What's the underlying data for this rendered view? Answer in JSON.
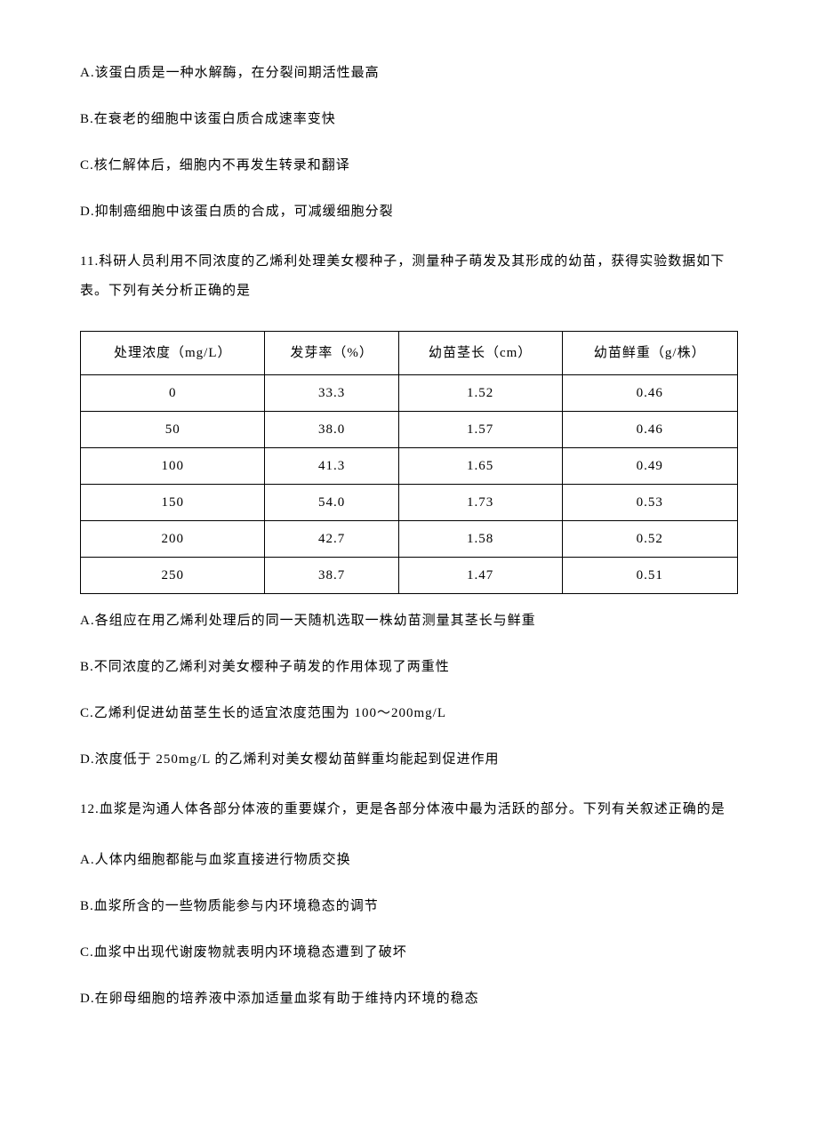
{
  "q10": {
    "optionA": "A.该蛋白质是一种水解酶，在分裂间期活性最高",
    "optionB": "B.在衰老的细胞中该蛋白质合成速率变快",
    "optionC": "C.核仁解体后，细胞内不再发生转录和翻译",
    "optionD": "D.抑制癌细胞中该蛋白质的合成，可减缓细胞分裂"
  },
  "q11": {
    "stem": "11.科研人员利用不同浓度的乙烯利处理美女樱种子，测量种子萌发及其形成的幼苗，获得实验数据如下表。下列有关分析正确的是",
    "table": {
      "columns": [
        "处理浓度（mg/L）",
        "发芽率（%）",
        "幼苗茎长（cm）",
        "幼苗鲜重（g/株）"
      ],
      "rows": [
        [
          "0",
          "33.3",
          "1.52",
          "0.46"
        ],
        [
          "50",
          "38.0",
          "1.57",
          "0.46"
        ],
        [
          "100",
          "41.3",
          "1.65",
          "0.49"
        ],
        [
          "150",
          "54.0",
          "1.73",
          "0.53"
        ],
        [
          "200",
          "42.7",
          "1.58",
          "0.52"
        ],
        [
          "250",
          "38.7",
          "1.47",
          "0.51"
        ]
      ],
      "border_color": "#000000",
      "background_color": "#ffffff"
    },
    "optionA": "A.各组应在用乙烯利处理后的同一天随机选取一株幼苗测量其茎长与鲜重",
    "optionB": "B.不同浓度的乙烯利对美女樱种子萌发的作用体现了两重性",
    "optionC": "C.乙烯利促进幼苗茎生长的适宜浓度范围为 100～200mg/L",
    "optionD": "D.浓度低于 250mg/L 的乙烯利对美女樱幼苗鲜重均能起到促进作用"
  },
  "q12": {
    "stem": "12.血浆是沟通人体各部分体液的重要媒介，更是各部分体液中最为活跃的部分。下列有关叙述正确的是",
    "optionA": "A.人体内细胞都能与血浆直接进行物质交换",
    "optionB": "B.血浆所含的一些物质能参与内环境稳态的调节",
    "optionC": "C.血浆中出现代谢废物就表明内环境稳态遭到了破坏",
    "optionD": "D.在卵母细胞的培养液中添加适量血浆有助于维持内环境的稳态"
  }
}
